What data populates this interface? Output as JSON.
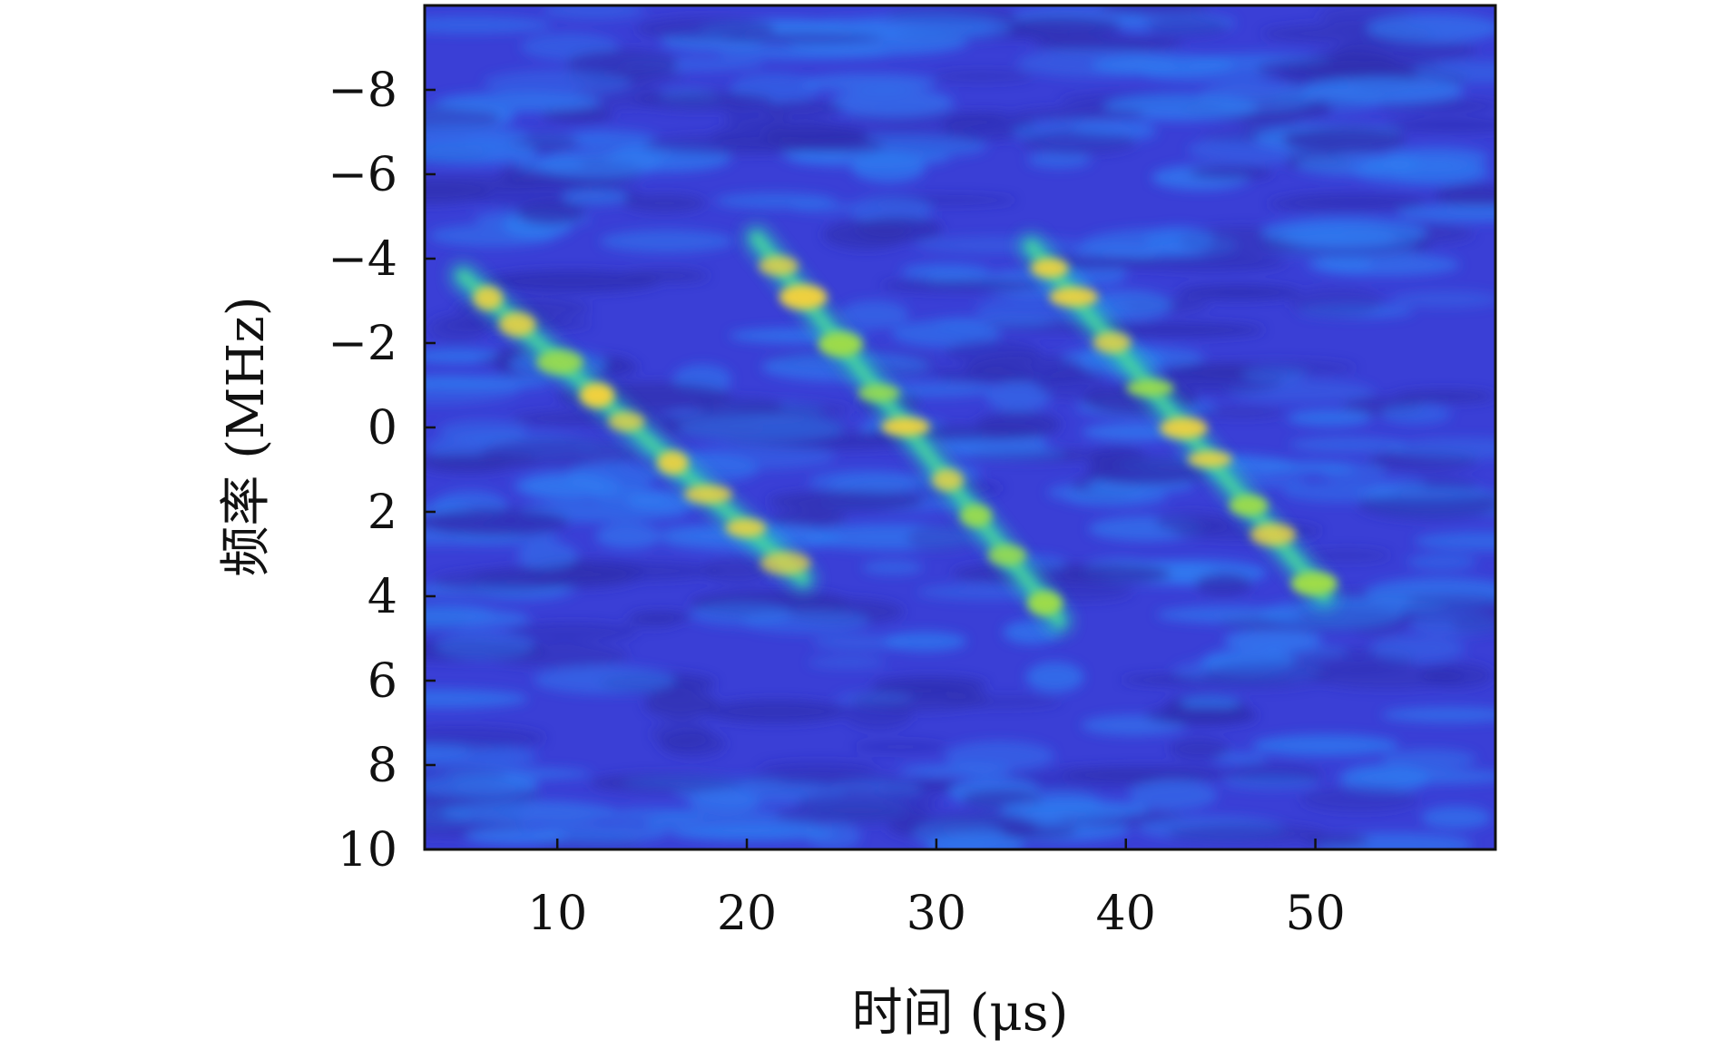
{
  "chart_data": {
    "type": "heatmap",
    "title": "",
    "xlabel": "时间 (μs)",
    "ylabel": "频率 (MHz)",
    "xlim": [
      3,
      59.5
    ],
    "ylim": [
      -10,
      10
    ],
    "y_inverted": true,
    "x_ticks": [
      10,
      20,
      30,
      40,
      50
    ],
    "x_tick_labels": [
      "10",
      "20",
      "30",
      "40",
      "50"
    ],
    "y_ticks": [
      -8,
      -6,
      -4,
      -2,
      0,
      2,
      4,
      6,
      8,
      10
    ],
    "y_tick_labels": [
      "−8",
      "−6",
      "−4",
      "−2",
      "0",
      "2",
      "4",
      "6",
      "8",
      "10"
    ],
    "colormap": "parula",
    "grid": false,
    "legend": "none",
    "colors": {
      "background": "#3a3fd6",
      "noise_dark": "#2f2fb0",
      "noise_light": "#2f7bf0",
      "trace_mid": "#2ec8b2",
      "trace_hot": "#f6d23a"
    },
    "series": [
      {
        "start": [
          5,
          -3.6
        ],
        "end": [
          23,
          3.6
        ]
      },
      {
        "start": [
          20.5,
          -4.5
        ],
        "end": [
          36.5,
          4.6
        ]
      },
      {
        "start": [
          35,
          -4.3
        ],
        "end": [
          50.5,
          4.0
        ]
      }
    ]
  }
}
